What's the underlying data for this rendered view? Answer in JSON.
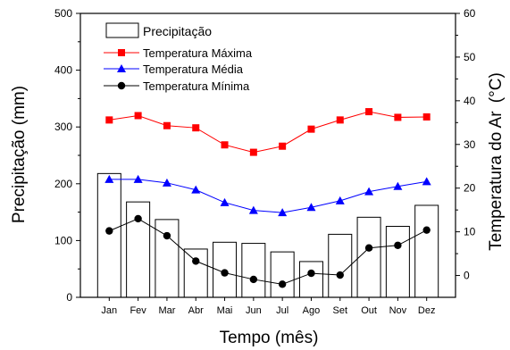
{
  "chart_data": {
    "type": "bar+line",
    "categories": [
      "Jan",
      "Fev",
      "Mar",
      "Abr",
      "Mai",
      "Jun",
      "Jul",
      "Ago",
      "Set",
      "Out",
      "Nov",
      "Dez"
    ],
    "xlabel": "Tempo (mês)",
    "ylabel_left": "Precipitação (mm)",
    "ylabel_right": "Temperatura do Ar",
    "ylabel_right_unit": "(°C)",
    "ylim_left": [
      0,
      500
    ],
    "ylim_right": [
      -5,
      60
    ],
    "yticks_left": [
      0,
      100,
      200,
      300,
      400,
      500
    ],
    "yticks_right": [
      0,
      10,
      20,
      30,
      40,
      50,
      60
    ],
    "legend_position": "top-left",
    "grid": false,
    "bars": {
      "name": "Precipitação",
      "axis": "left",
      "values": [
        218,
        168,
        137,
        85,
        97,
        95,
        80,
        63,
        111,
        141,
        125,
        162
      ],
      "fill": "#ffffff",
      "stroke": "#000000"
    },
    "series": [
      {
        "name": "Temperatura Máxima",
        "axis": "right",
        "color": "#ff0000",
        "marker": "square",
        "values": [
          35.6,
          36.6,
          34.3,
          33.8,
          29.9,
          28.2,
          29.6,
          33.5,
          35.6,
          37.5,
          36.2,
          36.3
        ]
      },
      {
        "name": "Temperatura Média",
        "axis": "right",
        "color": "#0000ff",
        "marker": "triangle",
        "values": [
          22.0,
          22.0,
          21.2,
          19.6,
          16.7,
          14.9,
          14.4,
          15.6,
          17.1,
          19.2,
          20.4,
          21.5
        ]
      },
      {
        "name": "Temperatura Mínima",
        "axis": "right",
        "color": "#000000",
        "marker": "circle",
        "values": [
          10.2,
          13.0,
          9.1,
          3.3,
          0.6,
          -0.9,
          -2.0,
          0.5,
          0.1,
          6.3,
          6.9,
          10.4
        ]
      }
    ]
  }
}
